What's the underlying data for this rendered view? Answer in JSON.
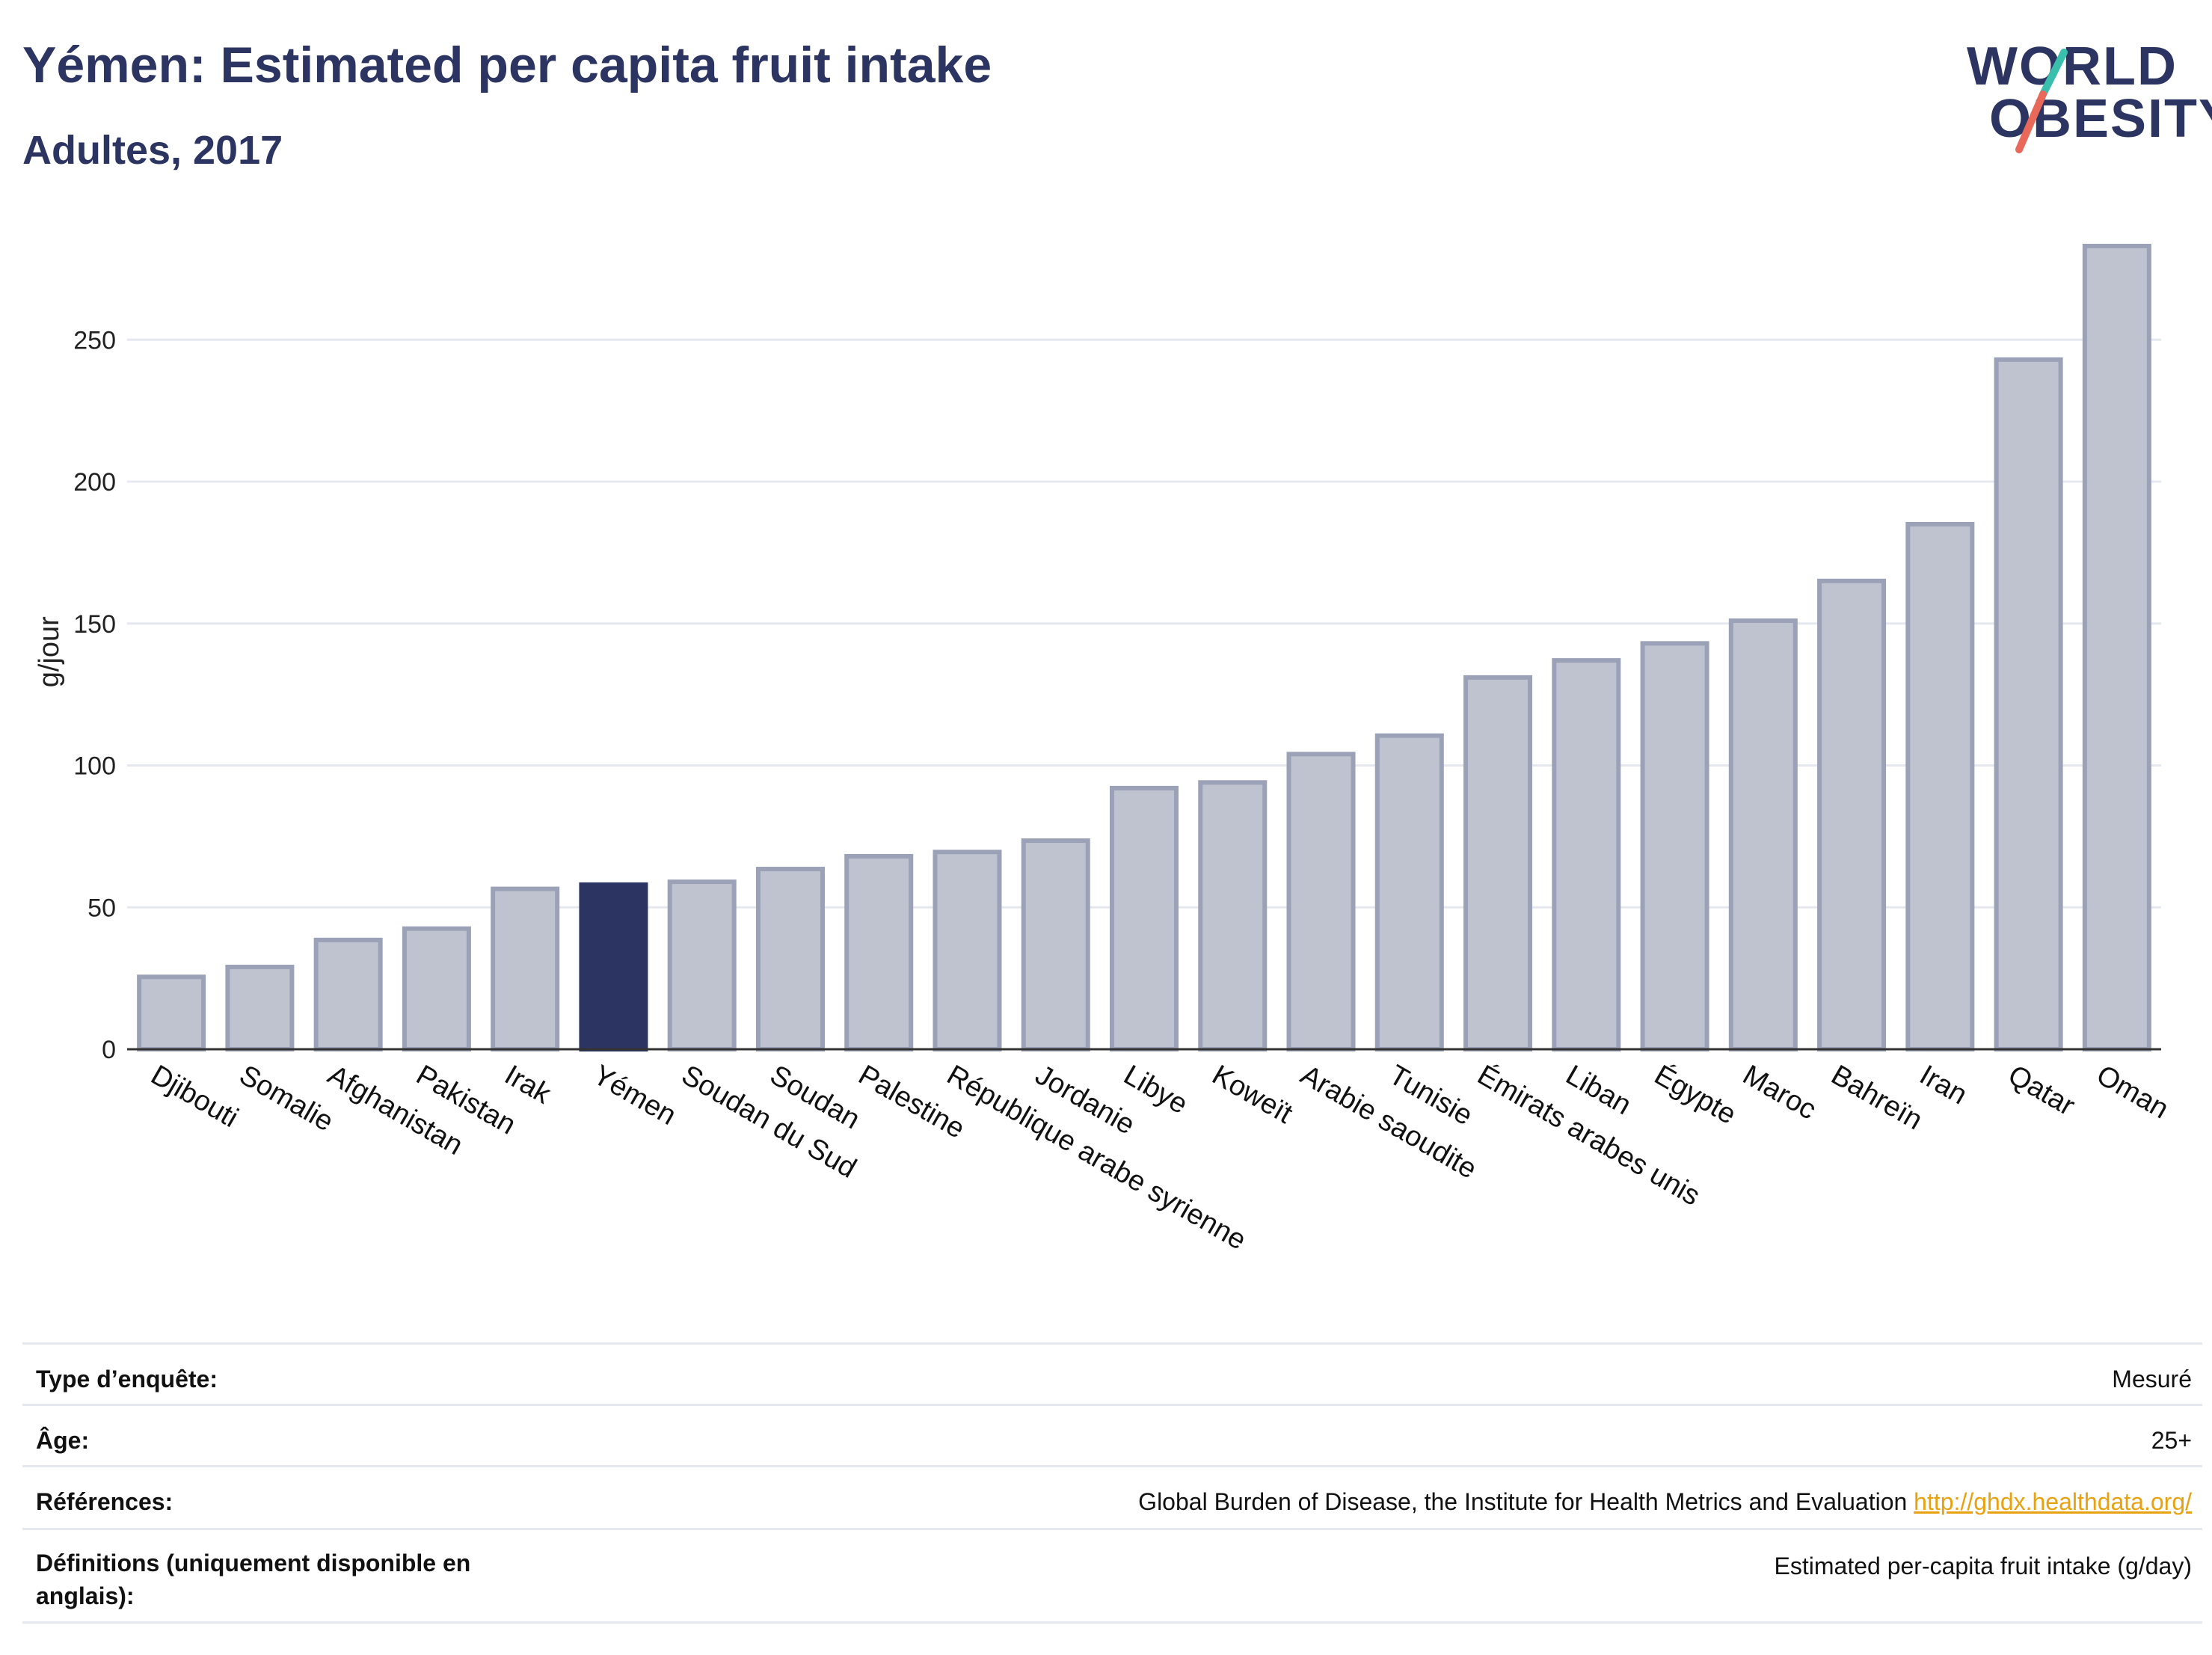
{
  "title": "Yémen: Estimated per capita fruit intake",
  "subtitle": "Adultes, 2017",
  "logo": {
    "line1": "WORLD",
    "line2": "OBESITY"
  },
  "colors": {
    "bar": "#bfc3cf",
    "bar_stroke": "#9ba1b6",
    "highlight": "#2c3561",
    "grid": "#e6e8ef",
    "axis": "#333333"
  },
  "chart_data": {
    "type": "bar",
    "ylabel": "g/jour",
    "ylim": [
      0,
      290
    ],
    "yticks": [
      0,
      50,
      100,
      150,
      200,
      250
    ],
    "highlight": "Yémen",
    "categories": [
      "Djibouti",
      "Somalie",
      "Afghanistan",
      "Pakistan",
      "Irak",
      "Yémen",
      "Soudan du Sud",
      "Soudan",
      "Palestine",
      "République arabe syrienne",
      "Jordanie",
      "Libye",
      "Koweït",
      "Arabie saoudite",
      "Tunisie",
      "Émirats arabes unis",
      "Liban",
      "Égypte",
      "Maroc",
      "Bahreïn",
      "Iran",
      "Qatar",
      "Oman"
    ],
    "values": [
      25.5,
      29,
      38.5,
      42.5,
      56.5,
      58,
      59,
      63.5,
      68,
      69.5,
      73.5,
      92,
      94,
      104,
      110.5,
      131,
      137,
      143,
      151,
      165,
      185,
      243,
      283
    ]
  },
  "info": {
    "rows": [
      {
        "label": "Type d’enquête:",
        "value": "Mesuré"
      },
      {
        "label": "Âge:",
        "value": "25+"
      },
      {
        "label": "Références:",
        "value": "Global Burden of Disease, the Institute for Health Metrics and Evaluation",
        "link": "http://ghdx.healthdata.org/"
      },
      {
        "label": "Définitions (uniquement disponible en anglais):",
        "value": "Estimated per-capita fruit intake (g/day)"
      }
    ]
  }
}
